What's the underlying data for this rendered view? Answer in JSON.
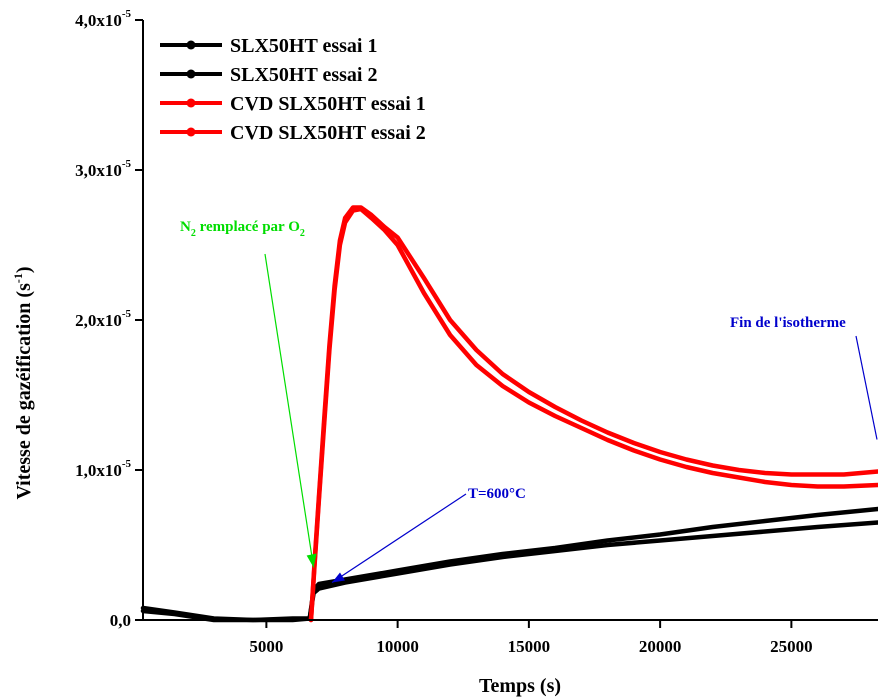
{
  "chart_data": {
    "type": "line",
    "xlabel": "Temps (s)",
    "ylabel": "Vitesse de gazéification (s",
    "ylabel_sup": "-1",
    "ylabel_close": ")",
    "xlim": [
      300,
      28300
    ],
    "ylim": [
      0,
      4e-05
    ],
    "xticks": [
      5000,
      10000,
      15000,
      20000,
      25000
    ],
    "xtick_labels": [
      "5000",
      "10000",
      "15000",
      "20000",
      "25000"
    ],
    "yticks": [
      0,
      1e-05,
      2e-05,
      3e-05,
      4e-05
    ],
    "ytick_labels": [
      {
        "mantissa": "0,0",
        "exp": ""
      },
      {
        "mantissa": "1,0x10",
        "exp": "-5"
      },
      {
        "mantissa": "2,0x10",
        "exp": "-5"
      },
      {
        "mantissa": "3,0x10",
        "exp": "-5"
      },
      {
        "mantissa": "4,0x10",
        "exp": "-5"
      }
    ],
    "legend_position": "top-left",
    "series": [
      {
        "name": "SLX50HT essai 1",
        "color": "#000000",
        "points": [
          [
            300,
            8e-07
          ],
          [
            1500,
            5e-07
          ],
          [
            3000,
            1e-07
          ],
          [
            4500,
            0.0
          ],
          [
            6000,
            1e-07
          ],
          [
            6650,
            1e-07
          ],
          [
            6800,
            2e-06
          ],
          [
            7000,
            2.4e-06
          ],
          [
            8000,
            2.7e-06
          ],
          [
            9000,
            3e-06
          ],
          [
            10000,
            3.3e-06
          ],
          [
            12000,
            3.9e-06
          ],
          [
            14000,
            4.4e-06
          ],
          [
            16000,
            4.8e-06
          ],
          [
            18000,
            5.3e-06
          ],
          [
            20000,
            5.7e-06
          ],
          [
            22000,
            6.2e-06
          ],
          [
            24000,
            6.6e-06
          ],
          [
            26000,
            7e-06
          ],
          [
            28300,
            7.4e-06
          ]
        ]
      },
      {
        "name": "SLX50HT essai 2",
        "color": "#000000",
        "points": [
          [
            300,
            6e-07
          ],
          [
            1500,
            4e-07
          ],
          [
            3000,
            0.0
          ],
          [
            4500,
            0.0
          ],
          [
            6000,
            0.0
          ],
          [
            6650,
            1e-07
          ],
          [
            6800,
            1.8e-06
          ],
          [
            7000,
            2.1e-06
          ],
          [
            8000,
            2.5e-06
          ],
          [
            9000,
            2.8e-06
          ],
          [
            10000,
            3.1e-06
          ],
          [
            12000,
            3.7e-06
          ],
          [
            14000,
            4.2e-06
          ],
          [
            16000,
            4.6e-06
          ],
          [
            18000,
            5e-06
          ],
          [
            20000,
            5.3e-06
          ],
          [
            22000,
            5.6e-06
          ],
          [
            24000,
            5.9e-06
          ],
          [
            26000,
            6.2e-06
          ],
          [
            28300,
            6.5e-06
          ]
        ]
      },
      {
        "name": "CVD SLX50HT essai 1",
        "color": "#ff0000",
        "points": [
          [
            6700,
            0.0
          ],
          [
            6850,
            4e-06
          ],
          [
            7000,
            8e-06
          ],
          [
            7200,
            1.3e-05
          ],
          [
            7400,
            1.8e-05
          ],
          [
            7600,
            2.2e-05
          ],
          [
            7800,
            2.5e-05
          ],
          [
            8000,
            2.65e-05
          ],
          [
            8300,
            2.73e-05
          ],
          [
            8600,
            2.74e-05
          ],
          [
            9000,
            2.68e-05
          ],
          [
            9500,
            2.6e-05
          ],
          [
            10000,
            2.5e-05
          ],
          [
            11000,
            2.18e-05
          ],
          [
            12000,
            1.9e-05
          ],
          [
            13000,
            1.7e-05
          ],
          [
            14000,
            1.56e-05
          ],
          [
            15000,
            1.45e-05
          ],
          [
            16000,
            1.36e-05
          ],
          [
            17000,
            1.28e-05
          ],
          [
            18000,
            1.2e-05
          ],
          [
            19000,
            1.13e-05
          ],
          [
            20000,
            1.07e-05
          ],
          [
            21000,
            1.02e-05
          ],
          [
            22000,
            9.8e-06
          ],
          [
            23000,
            9.5e-06
          ],
          [
            24000,
            9.2e-06
          ],
          [
            25000,
            9e-06
          ],
          [
            26000,
            8.9e-06
          ],
          [
            27000,
            8.9e-06
          ],
          [
            28300,
            9e-06
          ]
        ]
      },
      {
        "name": "CVD SLX50HT essai 2",
        "color": "#ff0000",
        "points": [
          [
            6700,
            0.0
          ],
          [
            6850,
            4.2e-06
          ],
          [
            7000,
            8.2e-06
          ],
          [
            7200,
            1.33e-05
          ],
          [
            7400,
            1.83e-05
          ],
          [
            7600,
            2.23e-05
          ],
          [
            7800,
            2.53e-05
          ],
          [
            8000,
            2.68e-05
          ],
          [
            8300,
            2.75e-05
          ],
          [
            8600,
            2.75e-05
          ],
          [
            9000,
            2.7e-05
          ],
          [
            9500,
            2.62e-05
          ],
          [
            10000,
            2.55e-05
          ],
          [
            11000,
            2.28e-05
          ],
          [
            12000,
            2e-05
          ],
          [
            13000,
            1.8e-05
          ],
          [
            14000,
            1.64e-05
          ],
          [
            15000,
            1.52e-05
          ],
          [
            16000,
            1.42e-05
          ],
          [
            17000,
            1.33e-05
          ],
          [
            18000,
            1.25e-05
          ],
          [
            19000,
            1.18e-05
          ],
          [
            20000,
            1.12e-05
          ],
          [
            21000,
            1.07e-05
          ],
          [
            22000,
            1.03e-05
          ],
          [
            23000,
            1e-05
          ],
          [
            24000,
            9.8e-06
          ],
          [
            25000,
            9.7e-06
          ],
          [
            26000,
            9.7e-06
          ],
          [
            27000,
            9.7e-06
          ],
          [
            28300,
            9.9e-06
          ]
        ]
      }
    ],
    "annotations": [
      {
        "id": "n2",
        "base": "N",
        "sub": "2",
        "text": " remplacé par O",
        "sub2": "2",
        "color": "#00dd00",
        "target": [
          6800,
          3.5e-06
        ]
      },
      {
        "id": "t600",
        "text": "T=600°C",
        "color": "#0000cc",
        "target": [
          7500,
          2.5e-06
        ]
      },
      {
        "id": "fin",
        "text": "Fin de l'isotherme",
        "color": "#0000cc",
        "target": [
          28300,
          9.7e-06
        ]
      }
    ]
  }
}
